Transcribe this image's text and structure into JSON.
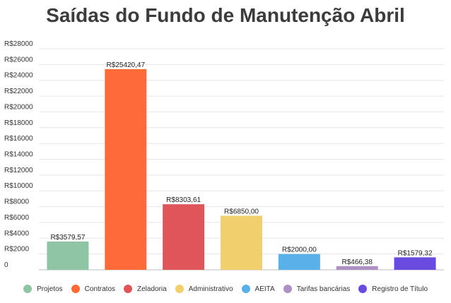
{
  "chart_data": {
    "type": "bar",
    "title": "Saídas do Fundo de Manutenção Abril",
    "categories": [
      "Projetos",
      "Contratos",
      "Zeladoria",
      "Administrativo",
      "AEITA",
      "Tarifas bancárias",
      "Registro de Título"
    ],
    "values": [
      3579.57,
      25420.47,
      8303.61,
      6850.0,
      2000.0,
      466.38,
      1579.32
    ],
    "data_labels": [
      "R$3579,57",
      "R$25420,47",
      "R$8303,61",
      "R$6850,00",
      "R$2000,00",
      "R$466,38",
      "R$1579,32"
    ],
    "colors": [
      "#8fc5a5",
      "#ff6a39",
      "#e0555a",
      "#f1cf6c",
      "#5ab0e8",
      "#ae90c5",
      "#6a4be0"
    ],
    "ylim": [
      0,
      28000
    ],
    "yticks": [
      0,
      2000,
      4000,
      6000,
      8000,
      10000,
      12000,
      14000,
      16000,
      18000,
      20000,
      22000,
      24000,
      26000,
      28000
    ],
    "ytick_labels": [
      "0",
      "R$2000",
      "R$4000",
      "R$6000",
      "R$8000",
      "R$10000",
      "R$12000",
      "R$14000",
      "R$16000",
      "R$18000",
      "R$20000",
      "R$22000",
      "R$24000",
      "R$26000",
      "R$28000"
    ],
    "xlabel": "",
    "ylabel": "",
    "grid": true,
    "legend_position": "bottom"
  }
}
